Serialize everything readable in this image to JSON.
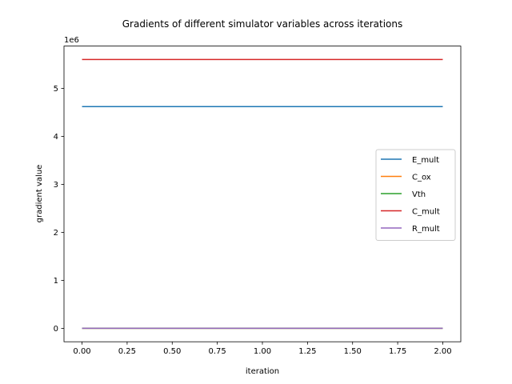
{
  "chart_data": {
    "type": "line",
    "title": "Gradients of different simulator variables across iterations",
    "xlabel": "iteration",
    "ylabel": "gradient value",
    "y_offset_label": "1e6",
    "y_scale_factor": 1000000,
    "xlim": [
      -0.1,
      2.1
    ],
    "ylim": [
      -0.28,
      5.88
    ],
    "x_ticks": [
      0.0,
      0.25,
      0.5,
      0.75,
      1.0,
      1.25,
      1.5,
      1.75,
      2.0
    ],
    "x_tick_labels": [
      "0.00",
      "0.25",
      "0.50",
      "0.75",
      "1.00",
      "1.25",
      "1.50",
      "1.75",
      "2.00"
    ],
    "y_ticks": [
      0,
      1,
      2,
      3,
      4,
      5
    ],
    "y_tick_labels": [
      "0",
      "1",
      "2",
      "3",
      "4",
      "5"
    ],
    "x": [
      0,
      1,
      2
    ],
    "series": [
      {
        "name": "E_mult",
        "color": "#1f77b4",
        "values": [
          4.62,
          4.62,
          4.62
        ]
      },
      {
        "name": "C_ox",
        "color": "#ff7f0e",
        "values": [
          0,
          0,
          0
        ]
      },
      {
        "name": "Vth",
        "color": "#2ca02c",
        "values": [
          0,
          0,
          0
        ]
      },
      {
        "name": "C_mult",
        "color": "#d62728",
        "values": [
          5.6,
          5.6,
          5.6
        ]
      },
      {
        "name": "R_mult",
        "color": "#9467bd",
        "values": [
          0,
          0,
          0
        ]
      }
    ],
    "grid": false,
    "legend_position": "center-right"
  }
}
